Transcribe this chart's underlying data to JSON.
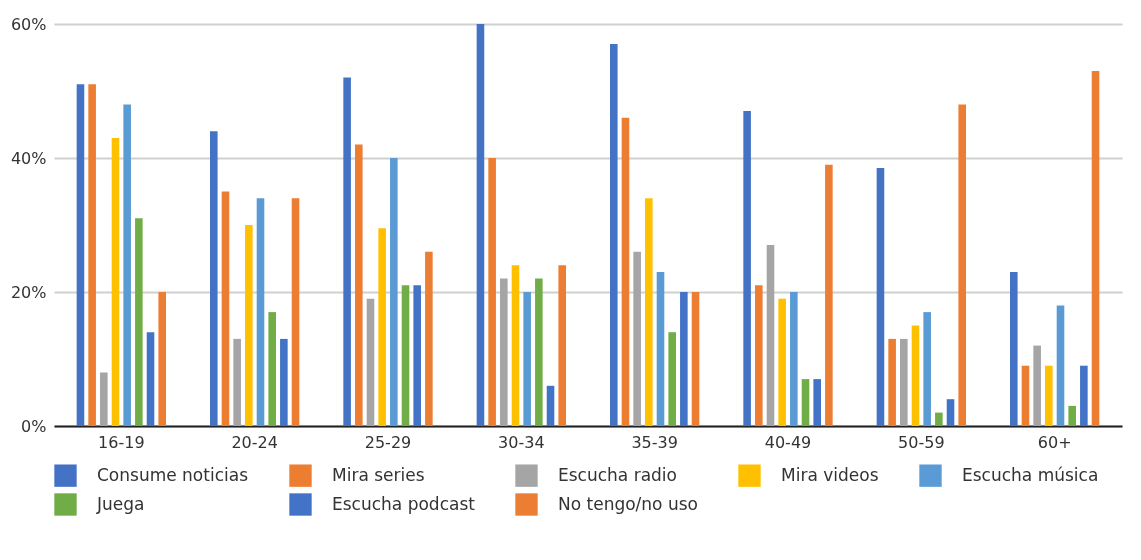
{
  "chart_data": {
    "type": "bar",
    "categories": [
      "16-19",
      "20-24",
      "25-29",
      "30-34",
      "35-39",
      "40-49",
      "50-59",
      "60+"
    ],
    "series": [
      {
        "name": "Consume noticias",
        "color": "#4472c4",
        "values": [
          51,
          44,
          52,
          60,
          57,
          47,
          38.5,
          23
        ]
      },
      {
        "name": "Mira series",
        "color": "#ed7d31",
        "values": [
          51,
          35,
          42,
          40,
          46,
          21,
          13,
          9
        ]
      },
      {
        "name": "Escucha radio",
        "color": "#a5a5a5",
        "values": [
          8,
          13,
          19,
          22,
          26,
          27,
          13,
          12
        ]
      },
      {
        "name": "Mira videos",
        "color": "#ffc000",
        "values": [
          43,
          30,
          29.5,
          24,
          34,
          19,
          15,
          9
        ]
      },
      {
        "name": "Escucha música",
        "color": "#5b9bd5",
        "values": [
          48,
          34,
          40,
          20,
          23,
          20,
          17,
          18
        ]
      },
      {
        "name": "Juega",
        "color": "#70ad47",
        "values": [
          31,
          17,
          21,
          22,
          14,
          7,
          2,
          3
        ]
      },
      {
        "name": "Escucha podcast",
        "color": "#4373c6",
        "values": [
          14,
          13,
          21,
          6,
          20,
          7,
          4,
          9
        ]
      },
      {
        "name": "No tengo/no uso",
        "color": "#ec7e33",
        "values": [
          20,
          34,
          26,
          24,
          20,
          39,
          48,
          53
        ]
      }
    ],
    "ylim": [
      0,
      60
    ],
    "yticks": [
      {
        "value": 0,
        "label": "0%"
      },
      {
        "value": 20,
        "label": "20%"
      },
      {
        "value": 40,
        "label": "40%"
      },
      {
        "value": 60,
        "label": "60%"
      }
    ],
    "grid": "y",
    "legend": "bottom"
  }
}
